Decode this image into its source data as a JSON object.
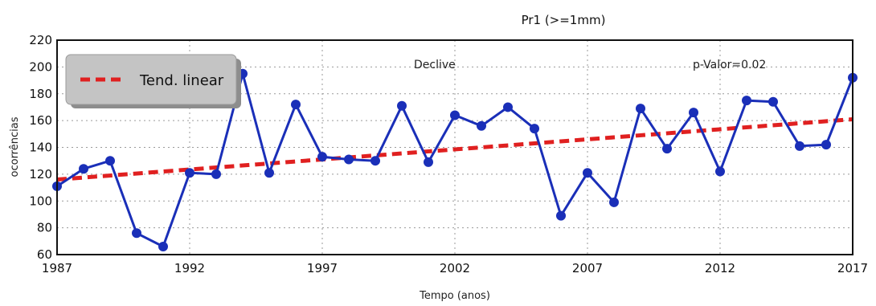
{
  "chart_data": {
    "type": "line",
    "title": "Pr1 (>=1mm)",
    "xlabel": "Tempo (anos)",
    "ylabel": "ocorrências",
    "xlim": [
      1987,
      2017
    ],
    "ylim": [
      60,
      220
    ],
    "x_ticks": [
      1987,
      1992,
      1997,
      2002,
      2007,
      2012,
      2017
    ],
    "y_ticks": [
      60,
      80,
      100,
      120,
      140,
      160,
      180,
      200,
      220
    ],
    "grid": true,
    "legend_position": "top-left",
    "annotations": [
      "Declive",
      "p-Valor=0.02"
    ],
    "series": [
      {
        "color": "#1a2fb8",
        "x": [
          1987,
          1988,
          1989,
          1990,
          1991,
          1992,
          1993,
          1994,
          1995,
          1996,
          1997,
          1998,
          1999,
          2000,
          2001,
          2002,
          2003,
          2004,
          2005,
          2006,
          2007,
          2008,
          2009,
          2010,
          2011,
          2012,
          2013,
          2014,
          2015,
          2016,
          2017
        ],
        "values": [
          111,
          124,
          130,
          76,
          66,
          121,
          120,
          195,
          121,
          172,
          133,
          131,
          130,
          171,
          129,
          164,
          156,
          170,
          154,
          89,
          121,
          99,
          169,
          139,
          166,
          122,
          175,
          174,
          141,
          142,
          192
        ]
      },
      {
        "name": "Tend. linear",
        "color": "#e02020",
        "style": "dashed",
        "x": [
          1987,
          2017
        ],
        "values": [
          116,
          161
        ]
      }
    ]
  }
}
